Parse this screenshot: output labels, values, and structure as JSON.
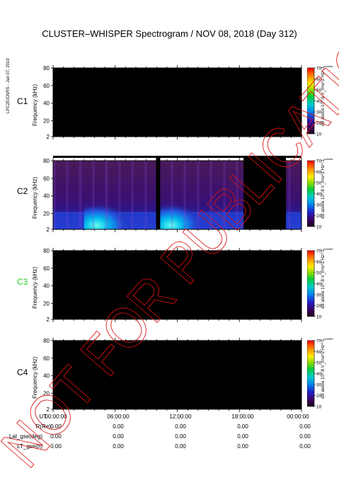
{
  "title": "CLUSTER–WHISPER Spectrogram / NOV 08, 2018 (Day 312)",
  "side_note": "LPC2E/CNRS - Jan 07, 2019",
  "watermark": "NOT FOR PUBLICATION",
  "colors": {
    "background": "#000000",
    "accent_c3": "#22cc22"
  },
  "chart_data": {
    "type": "heatmap",
    "ylabel": "Frequency (kHz)",
    "ylim": [
      2,
      80
    ],
    "ytick_labels": [
      "80",
      "60",
      "40",
      "20",
      "2"
    ],
    "xlim": [
      "00:00:00",
      "24:00:00"
    ],
    "colorbar": {
      "title": "dB above 10^-8 V_rms^2 Hz^-1",
      "ticks": [
        "70",
        "60",
        "50",
        "40",
        "30",
        "20",
        "10"
      ],
      "range": [
        10,
        70
      ],
      "tag": "monitor"
    },
    "panels": [
      {
        "spacecraft": "C1",
        "has_data": false,
        "label_color": "#000000"
      },
      {
        "spacecraft": "C2",
        "has_data": true,
        "label_color": "#000000",
        "data_gaps_h": [
          [
            9.95,
            10.35
          ],
          [
            18.4,
            22.5
          ]
        ],
        "emission_band_khz": [
          2,
          22
        ],
        "intense_intervals_h": [
          [
            3.0,
            7.0
          ],
          [
            10.3,
            14.0
          ]
        ]
      },
      {
        "spacecraft": "C3",
        "has_data": false,
        "label_color": "#22cc22"
      },
      {
        "spacecraft": "C4",
        "has_data": false,
        "label_color": "#000000"
      }
    ]
  },
  "ephemeris": {
    "rows": [
      {
        "label": "UT",
        "values": [
          "00:00:00",
          "06:00:00",
          "12:00:00",
          "18:00:00",
          "00:00:00"
        ]
      },
      {
        "label": "R(Re)",
        "values": [
          "0.00",
          "0.00",
          "0.00",
          "0.00",
          "0.00"
        ]
      },
      {
        "label": "Lat_gse(deg)",
        "values": [
          "0.00",
          "0.00",
          "0.00",
          "0.00",
          "0.00"
        ]
      },
      {
        "label": "LT_gse(h)",
        "values": [
          "0.00",
          "0.00",
          "0.00",
          "0.00",
          "0.00"
        ]
      }
    ]
  }
}
